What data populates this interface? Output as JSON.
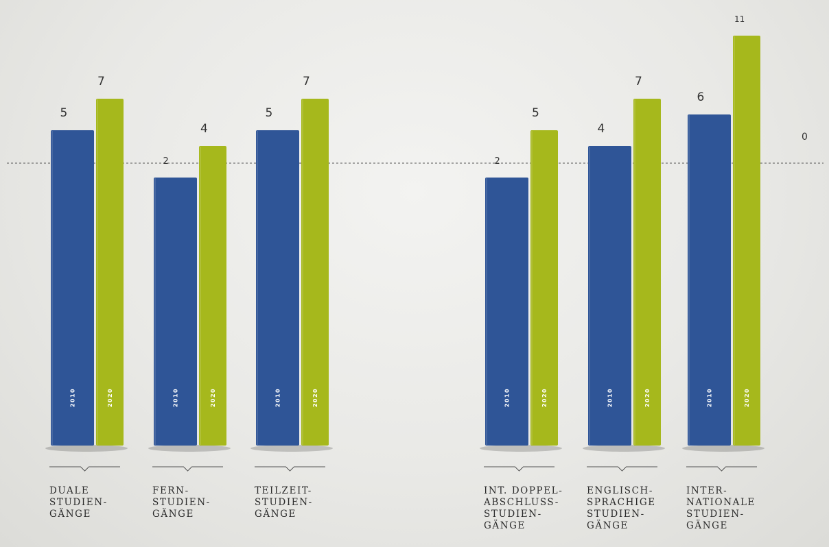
{
  "chart_data": {
    "type": "bar",
    "categories": [
      "DUALE\nSTUDIEN-\nGÄNGE",
      "FERN-\nSTUDIEN-\nGÄNGE",
      "TEILZEIT-\nSTUDIEN-\nGÄNGE",
      "INT. DOPPEL-\nABSCHLUSS-\nSTUDIEN-\nGÄNGE",
      "ENGLISCH-\nSPRACHIGE\nSTUDIEN-\nGÄNGE",
      "INTER-\nNATIONALE\nSTUDIEN-\nGÄNGE"
    ],
    "series": [
      {
        "name": "2010",
        "values": [
          5,
          2,
          5,
          2,
          4,
          6
        ]
      },
      {
        "name": "2020",
        "values": [
          7,
          4,
          7,
          5,
          7,
          11
        ]
      }
    ],
    "zero_line_label": "0",
    "colors": {
      "2010": "#2f5597",
      "2020": "#a6b81c"
    }
  }
}
